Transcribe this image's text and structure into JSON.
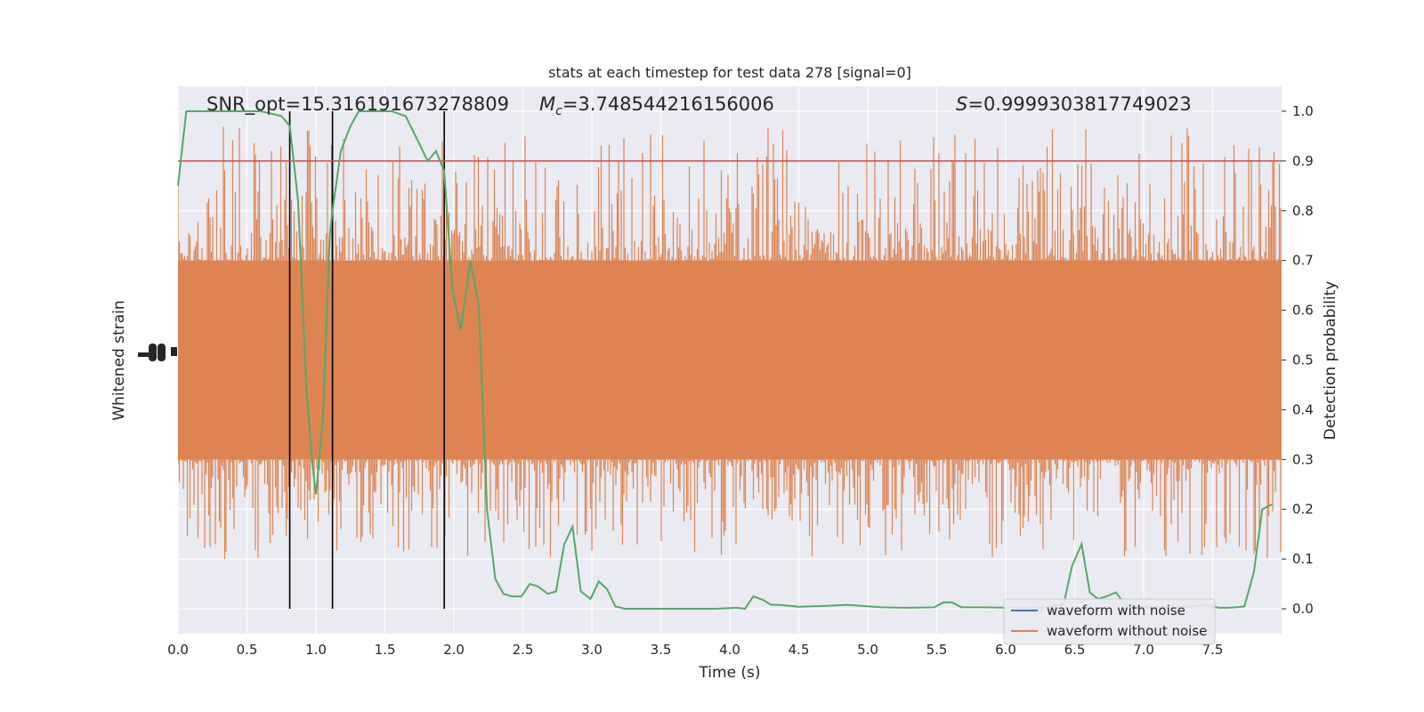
{
  "chart_data": {
    "type": "line",
    "title": "stats at each timestep for test data 278 [signal=0]",
    "xlabel": "Time (s)",
    "ylabel_left": "Whitened strain",
    "ylabel_right": "Detection probability",
    "xlim": [
      0.0,
      8.0
    ],
    "ylim_right": [
      -0.05,
      1.05
    ],
    "x_ticks": [
      "0.0",
      "0.5",
      "1.0",
      "1.5",
      "2.0",
      "2.5",
      "3.0",
      "3.5",
      "4.0",
      "4.5",
      "5.0",
      "5.5",
      "6.0",
      "6.5",
      "7.0",
      "7.5"
    ],
    "y_ticks_right": [
      "0.0",
      "0.1",
      "0.2",
      "0.3",
      "0.4",
      "0.5",
      "0.6",
      "0.7",
      "0.8",
      "0.9",
      "1.0"
    ],
    "grid": true,
    "annotations": {
      "snr": "SNR_opt=15.316191673278809",
      "mc_symbol": "M",
      "mc_sub": "c",
      "mc_value": "=3.748544216156006",
      "s_symbol": "S",
      "s_value": "=0.9999303817749023"
    },
    "threshold": 0.9,
    "vlines_x": [
      0.81,
      1.12,
      1.93
    ],
    "legend": {
      "position": "lower right",
      "entries": [
        {
          "label": "waveform with noise",
          "color": "#4c72b0"
        },
        {
          "label": "waveform without noise",
          "color": "#dd8452"
        }
      ]
    },
    "series": [
      {
        "name": "Detection probability",
        "color": "#55a868",
        "x": [
          0.0,
          0.06,
          0.12,
          0.2,
          0.3,
          0.4,
          0.5,
          0.6,
          0.68,
          0.75,
          0.81,
          0.87,
          0.93,
          0.97,
          1.0,
          1.05,
          1.1,
          1.12,
          1.18,
          1.25,
          1.31,
          1.37,
          1.45,
          1.55,
          1.65,
          1.74,
          1.81,
          1.87,
          1.93,
          1.99,
          2.05,
          2.12,
          2.18,
          2.24,
          2.3,
          2.36,
          2.42,
          2.49,
          2.55,
          2.61,
          2.68,
          2.74,
          2.8,
          2.86,
          2.92,
          2.99,
          3.05,
          3.11,
          3.17,
          3.24,
          3.3,
          3.36,
          3.5,
          3.7,
          3.9,
          4.05,
          4.11,
          4.17,
          4.24,
          4.3,
          4.36,
          4.5,
          4.7,
          4.85,
          5.0,
          5.1,
          5.3,
          5.48,
          5.55,
          5.61,
          5.68,
          5.74,
          5.85,
          6.0,
          6.2,
          6.3,
          6.42,
          6.48,
          6.55,
          6.61,
          6.67,
          6.73,
          6.8,
          6.86,
          6.92,
          7.0,
          7.2,
          7.35,
          7.42,
          7.48,
          7.55,
          7.61,
          7.67,
          7.73,
          7.8,
          7.86,
          7.93
        ],
        "y": [
          0.85,
          1.0,
          1.0,
          1.0,
          1.0,
          1.0,
          1.0,
          1.0,
          0.995,
          0.99,
          0.97,
          0.82,
          0.45,
          0.3,
          0.23,
          0.38,
          0.75,
          0.8,
          0.92,
          0.97,
          1.0,
          1.0,
          1.0,
          1.0,
          0.99,
          0.94,
          0.9,
          0.92,
          0.88,
          0.64,
          0.56,
          0.7,
          0.61,
          0.2,
          0.06,
          0.03,
          0.025,
          0.025,
          0.05,
          0.045,
          0.03,
          0.035,
          0.13,
          0.165,
          0.035,
          0.02,
          0.055,
          0.04,
          0.005,
          0.0,
          0.0,
          0.0,
          0.0,
          0.0,
          0.0,
          0.002,
          0.0,
          0.025,
          0.018,
          0.008,
          0.008,
          0.004,
          0.006,
          0.008,
          0.005,
          0.003,
          0.002,
          0.003,
          0.013,
          0.013,
          0.003,
          0.003,
          0.003,
          0.002,
          0.002,
          0.003,
          0.01,
          0.085,
          0.13,
          0.033,
          0.02,
          0.025,
          0.033,
          0.01,
          0.005,
          0.003,
          0.003,
          0.005,
          0.008,
          0.005,
          0.002,
          0.002,
          0.003,
          0.005,
          0.075,
          0.2,
          0.21
        ]
      },
      {
        "name": "waveform without noise",
        "color": "#dd8452",
        "kind": "noise-band",
        "core_band": [
          0.3,
          0.7
        ],
        "envelope": [
          0.1,
          0.97
        ]
      }
    ]
  }
}
